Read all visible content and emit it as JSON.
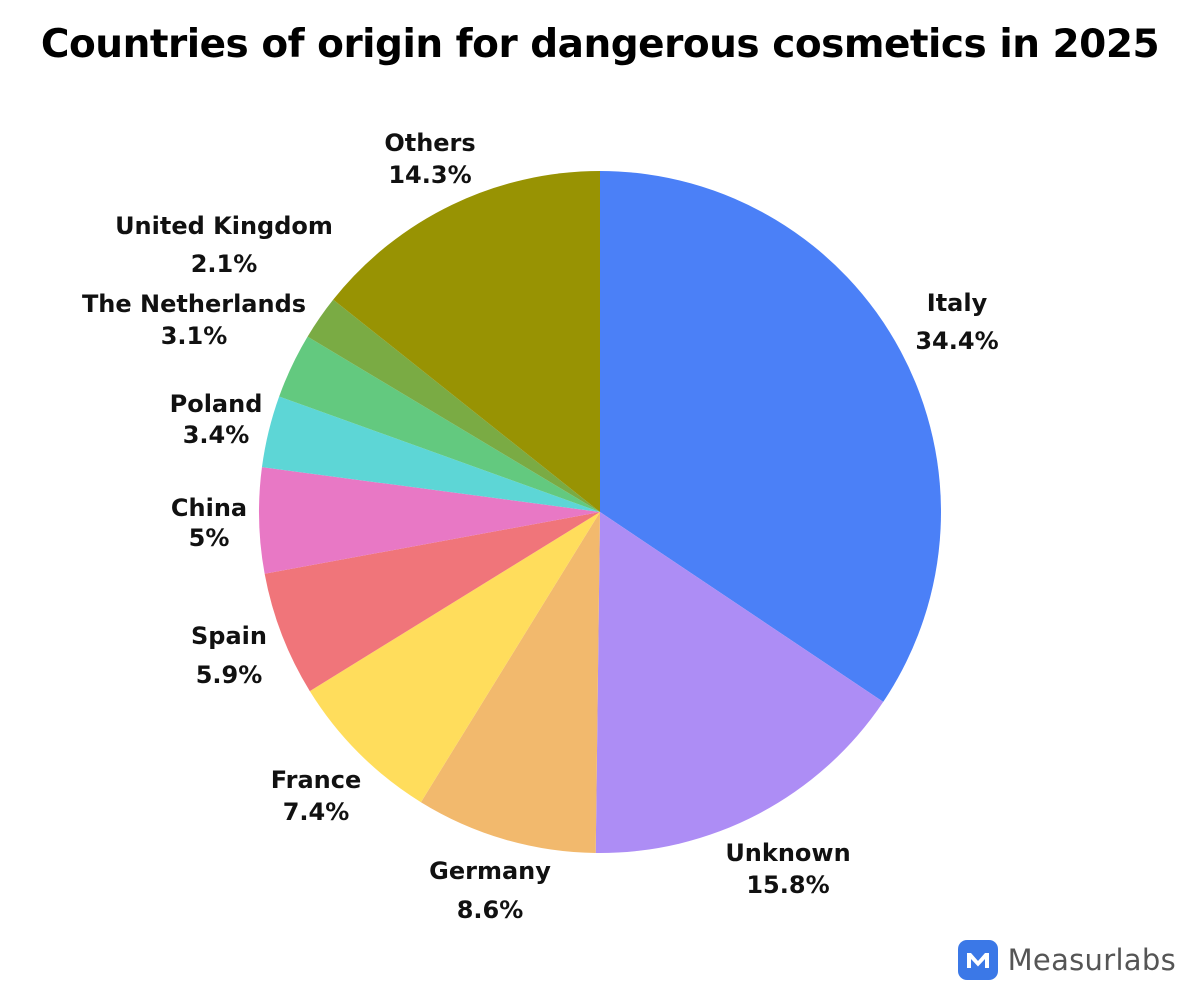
{
  "chart_data": {
    "type": "pie",
    "title": "Countries of origin for dangerous cosmetics in 2025",
    "slices": [
      {
        "label": "Italy",
        "value_label": "34.4%",
        "value": 34.4,
        "color": "#4b80f7"
      },
      {
        "label": "Unknown",
        "value_label": "15.8%",
        "value": 15.8,
        "color": "#ad8df5"
      },
      {
        "label": "Germany",
        "value_label": "8.6%",
        "value": 8.6,
        "color": "#f2b96d"
      },
      {
        "label": "France",
        "value_label": "7.4%",
        "value": 7.4,
        "color": "#ffdd5c"
      },
      {
        "label": "Spain",
        "value_label": "5.9%",
        "value": 5.9,
        "color": "#f0757a"
      },
      {
        "label": "China",
        "value_label": "5%",
        "value": 5,
        "color": "#e878c5"
      },
      {
        "label": "Poland",
        "value_label": "3.4%",
        "value": 3.4,
        "color": "#5dd6d6"
      },
      {
        "label": "The Netherlands",
        "value_label": "3.1%",
        "value": 3.1,
        "color": "#63c97f"
      },
      {
        "label": "United Kingdom",
        "value_label": "2.1%",
        "value": 2.1,
        "color": "#7aab44"
      },
      {
        "label": "Others",
        "value_label": "14.3%",
        "value": 14.3,
        "color": "#989303"
      }
    ],
    "start": "12 o'clock",
    "direction": "clockwise",
    "legend": "none"
  },
  "brand": {
    "name": "Measurlabs",
    "logo_icon": "measurlabs-m-logo-icon",
    "logo_color": "#3b78e7"
  }
}
